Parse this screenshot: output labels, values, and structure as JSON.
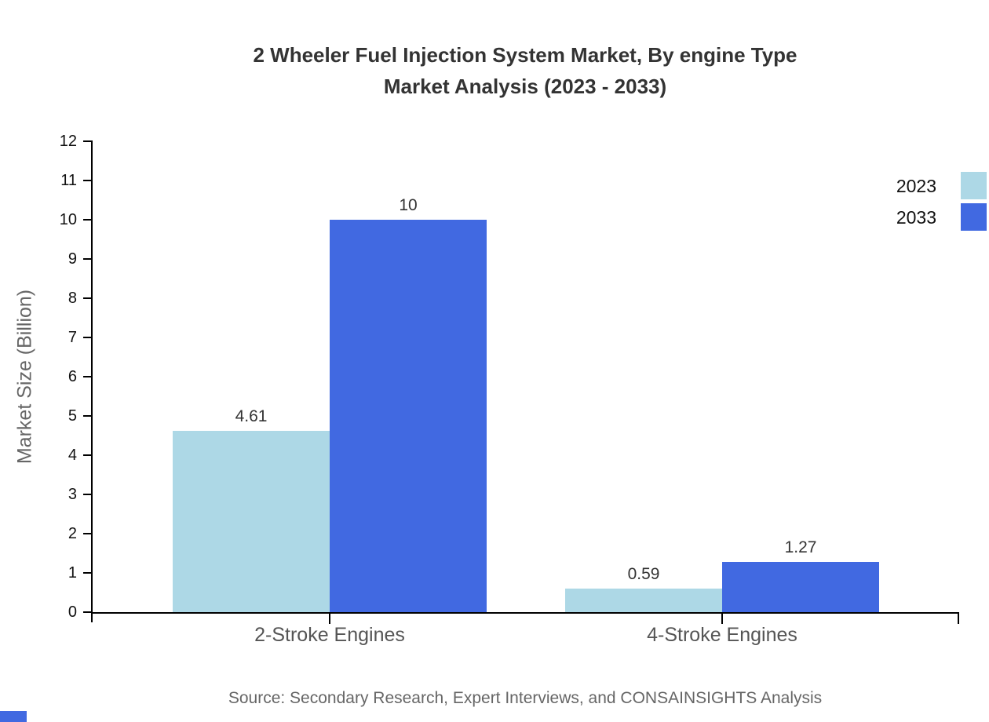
{
  "title": {
    "line1": "2 Wheeler Fuel Injection System Market, By engine Type",
    "line2": "Market Analysis (2023 - 2033)"
  },
  "chart_data": {
    "type": "bar",
    "categories": [
      "2-Stroke Engines",
      "4-Stroke Engines"
    ],
    "series": [
      {
        "name": "2023",
        "color": "#ADD8E6",
        "values": [
          4.61,
          0.59
        ],
        "labels": [
          "4.61",
          "0.59"
        ]
      },
      {
        "name": "2033",
        "color": "#4169E1",
        "values": [
          10,
          1.27
        ],
        "labels": [
          "10",
          "1.27"
        ]
      }
    ],
    "title": "2 Wheeler Fuel Injection System Market, By engine Type Market Analysis (2023 - 2033)",
    "xlabel": "",
    "ylabel": "Market Size (Billion)",
    "ylim": [
      0,
      12
    ],
    "ytick_step": 1,
    "grid": false,
    "legend_position": "top-right"
  },
  "legend": {
    "items": [
      {
        "label": "2023",
        "color": "#ADD8E6"
      },
      {
        "label": "2033",
        "color": "#4169E1"
      }
    ]
  },
  "source": "Source: Secondary Research, Expert Interviews, and CONSAINSIGHTS Analysis",
  "colors": {
    "series_2023": "#ADD8E6",
    "series_2033": "#4169E1",
    "axis": "#000000",
    "title_text": "#333333",
    "muted_text": "#666666",
    "category_text": "#555555",
    "corner_mark": "#4169E1"
  }
}
